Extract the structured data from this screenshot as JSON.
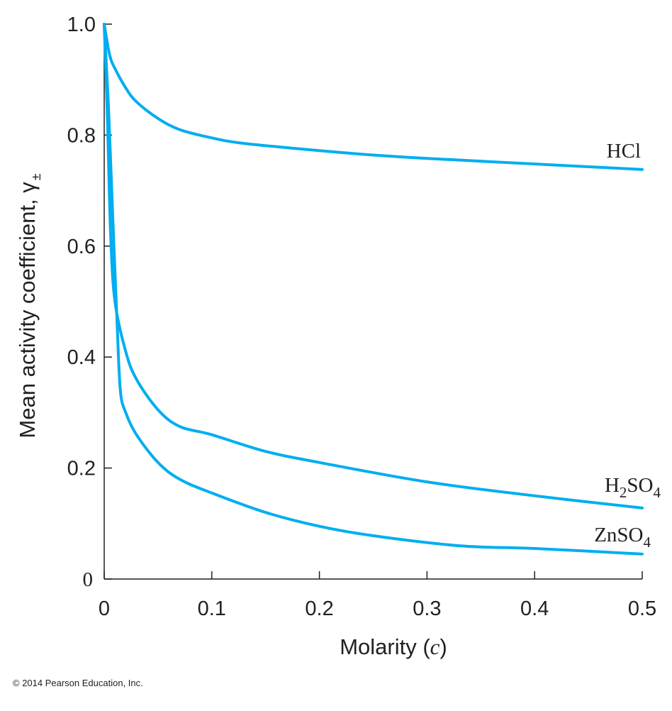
{
  "chart_data": {
    "type": "line",
    "ylabel": "Mean activity coefficient, γ",
    "ylabel_symbol_sub": "±",
    "xlabel": "Molarity (",
    "xlabel_var": "c",
    "xlabel_close": ")",
    "xlim": [
      0,
      0.5
    ],
    "ylim": [
      0,
      1.0
    ],
    "x_ticks": [
      0,
      0.1,
      0.2,
      0.3,
      0.4,
      0.5
    ],
    "x_tick_labels": [
      "0",
      "0.1",
      "0.2",
      "0.3",
      "0.4",
      "0.5"
    ],
    "y_ticks": [
      0,
      0.2,
      0.4,
      0.6,
      0.8,
      1.0
    ],
    "y_tick_labels": [
      "0",
      "0.2",
      "0.4",
      "0.6",
      "0.8",
      "1.0"
    ],
    "grid": false,
    "line_color": "#00aeef",
    "series": [
      {
        "name": "HCl",
        "label_parts": [
          [
            "HCl",
            false
          ]
        ],
        "x": [
          0,
          0.005,
          0.01,
          0.02,
          0.03,
          0.05,
          0.07,
          0.1,
          0.13,
          0.2,
          0.25,
          0.3,
          0.4,
          0.5
        ],
        "y": [
          1.0,
          0.945,
          0.92,
          0.885,
          0.86,
          0.83,
          0.81,
          0.795,
          0.785,
          0.772,
          0.764,
          0.758,
          0.748,
          0.738
        ]
      },
      {
        "name": "H2SO4",
        "label_parts": [
          [
            "H",
            false
          ],
          [
            "2",
            true
          ],
          [
            "SO",
            false
          ],
          [
            "4",
            true
          ]
        ],
        "x": [
          0,
          0.003,
          0.006,
          0.01,
          0.02,
          0.03,
          0.05,
          0.07,
          0.1,
          0.15,
          0.2,
          0.3,
          0.4,
          0.5
        ],
        "y": [
          1.0,
          0.83,
          0.62,
          0.5,
          0.41,
          0.36,
          0.305,
          0.275,
          0.26,
          0.23,
          0.21,
          0.175,
          0.15,
          0.128
        ]
      },
      {
        "name": "ZnSO4",
        "label_parts": [
          [
            "ZnSO",
            false
          ],
          [
            "4",
            true
          ]
        ],
        "x": [
          0,
          0.004,
          0.008,
          0.012,
          0.015,
          0.02,
          0.03,
          0.05,
          0.07,
          0.1,
          0.15,
          0.2,
          0.25,
          0.33,
          0.4,
          0.5
        ],
        "y": [
          1.0,
          0.85,
          0.65,
          0.46,
          0.34,
          0.3,
          0.26,
          0.21,
          0.18,
          0.155,
          0.12,
          0.095,
          0.078,
          0.06,
          0.055,
          0.045
        ]
      }
    ]
  },
  "footer": {
    "copyright": "© 2014 Pearson Education, Inc."
  }
}
